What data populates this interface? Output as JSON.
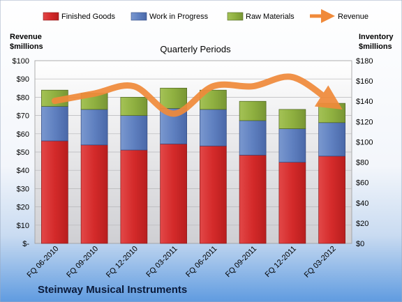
{
  "chart_data": {
    "type": "bar",
    "title": "Quarterly Periods",
    "company": "Steinway Musical Instruments",
    "ylabel_left": [
      "Revenue",
      "$millions"
    ],
    "ylabel_right": [
      "Inventory",
      "$millions"
    ],
    "categories": [
      "FQ 06-2010",
      "FQ 09-2010",
      "FQ 12-2010",
      "FQ 03-2011",
      "FQ 06-2011",
      "FQ 09-2011",
      "FQ 12-2011",
      "FQ 03-2012"
    ],
    "left_axis": {
      "min": 0,
      "max": 100,
      "step": 10,
      "ticks": [
        "$-",
        "$10",
        "$20",
        "$30",
        "$40",
        "$50",
        "$60",
        "$70",
        "$80",
        "$90",
        "$100"
      ]
    },
    "right_axis": {
      "min": 0,
      "max": 180,
      "step": 20,
      "ticks": [
        "$0",
        "$20",
        "$40",
        "$60",
        "$80",
        "$100",
        "$120",
        "$140",
        "$160",
        "$180"
      ]
    },
    "stacked_series_axis": "right",
    "series": [
      {
        "name": "Finished Goods",
        "type": "bar",
        "color": "#d42a2a",
        "values": [
          101,
          97,
          92,
          98,
          96,
          87,
          80,
          86
        ]
      },
      {
        "name": "Work in Progress",
        "type": "bar",
        "color": "#5f80c0",
        "values": [
          34,
          35,
          34,
          35,
          36,
          34,
          33,
          33
        ]
      },
      {
        "name": "Raw Materials",
        "type": "bar",
        "color": "#8fb040",
        "values": [
          16,
          16,
          18,
          20,
          19,
          19,
          19,
          19
        ]
      },
      {
        "name": "Revenue",
        "type": "line",
        "axis": "left",
        "color": "#f08a3a",
        "values": [
          78,
          82,
          86,
          71,
          86,
          86,
          91,
          77
        ]
      }
    ],
    "legend_position": "top",
    "grid": true
  }
}
